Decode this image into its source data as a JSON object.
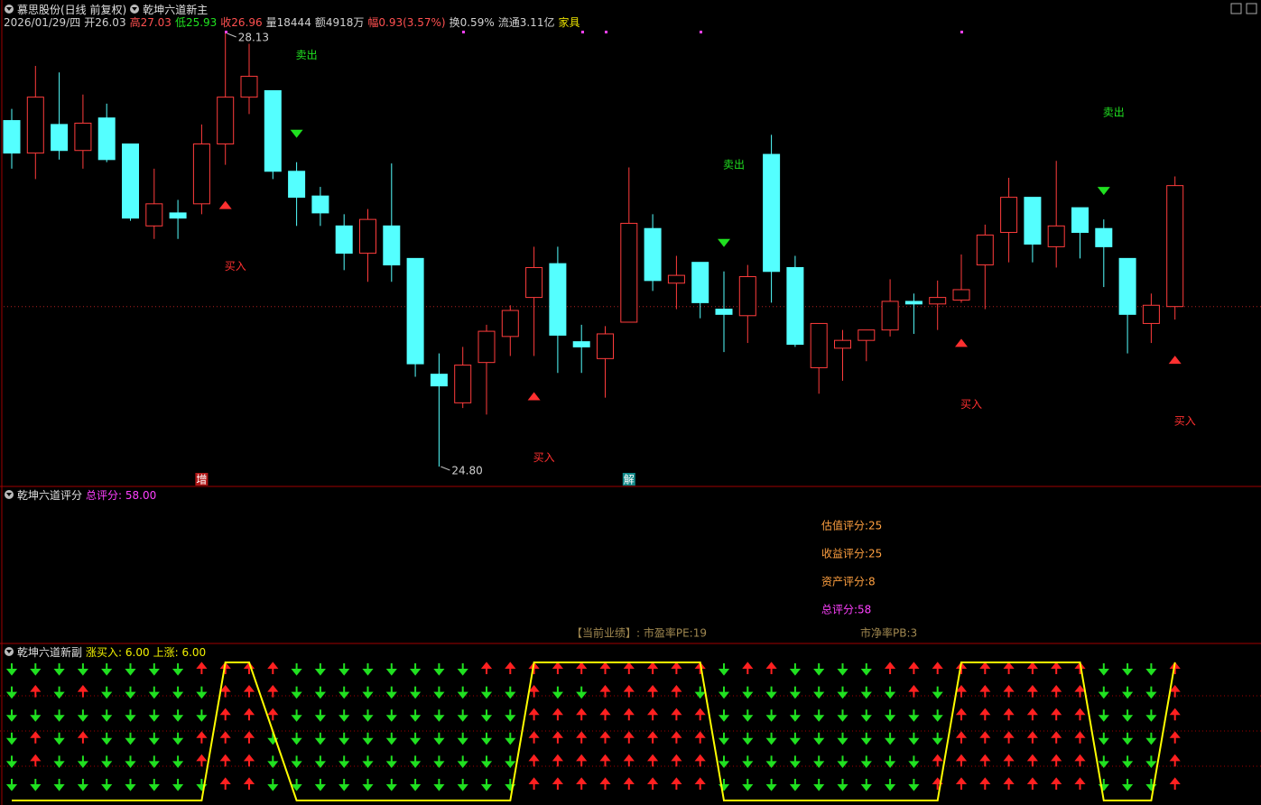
{
  "chart_data": [
    {
      "type": "candlestick",
      "title": "慕思股份(日线 前复权)",
      "indicator": "乾坤六道新主",
      "info": [
        {
          "text": "2026/01/29/四",
          "color": "#d0d0d0"
        },
        {
          "text": "开26.03",
          "color": "#d0d0d0"
        },
        {
          "text": "高27.03",
          "color": "#ff5050"
        },
        {
          "text": "低25.93",
          "color": "#20e020"
        },
        {
          "text": "收26.96",
          "color": "#ff5050"
        },
        {
          "text": "量18444",
          "color": "#d0d0d0"
        },
        {
          "text": "额4918万",
          "color": "#d0d0d0"
        },
        {
          "text": "幅0.93(3.57%)",
          "color": "#ff5050"
        },
        {
          "text": "换0.59%",
          "color": "#d0d0d0"
        },
        {
          "text": "流通3.11亿",
          "color": "#d0d0d0"
        },
        {
          "text": "家具",
          "color": "#e8e000"
        }
      ],
      "open": [
        27.46,
        27.21,
        27.43,
        27.23,
        27.48,
        27.28,
        26.65,
        26.75,
        26.82,
        27.28,
        27.64,
        27.69,
        27.07,
        26.88,
        26.65,
        26.44,
        26.65,
        26.4,
        25.51,
        25.29,
        25.6,
        25.8,
        26.1,
        26.36,
        25.76,
        25.63,
        25.91,
        26.63,
        26.21,
        26.37,
        26.01,
        25.96,
        27.2,
        26.33,
        25.56,
        25.71,
        25.77,
        25.85,
        26.07,
        26.05,
        26.08,
        26.35,
        26.6,
        26.87,
        26.49,
        26.79,
        26.63,
        26.4,
        25.9,
        26.03
      ],
      "high": [
        27.55,
        27.88,
        27.83,
        27.66,
        27.59,
        27.28,
        27.09,
        26.85,
        27.43,
        28.13,
        28.05,
        27.69,
        27.14,
        26.95,
        26.74,
        26.78,
        27.13,
        26.4,
        25.67,
        25.72,
        25.89,
        26.04,
        26.49,
        26.49,
        25.89,
        25.88,
        27.1,
        26.74,
        26.42,
        26.37,
        26.3,
        26.35,
        27.35,
        26.42,
        25.9,
        25.85,
        25.85,
        26.24,
        26.13,
        26.23,
        26.43,
        26.66,
        27.02,
        26.87,
        27.15,
        26.79,
        26.7,
        26.4,
        26.13,
        27.03
      ],
      "low": [
        27.09,
        27.01,
        27.16,
        27.09,
        27.14,
        26.69,
        26.55,
        26.55,
        26.74,
        27.12,
        27.51,
        27.01,
        26.65,
        26.65,
        26.31,
        26.22,
        26.22,
        25.49,
        24.8,
        25.25,
        25.2,
        25.65,
        25.65,
        25.52,
        25.52,
        25.33,
        25.91,
        26.15,
        26.01,
        25.94,
        25.68,
        25.75,
        26.06,
        25.72,
        25.36,
        25.46,
        25.61,
        25.8,
        25.82,
        25.85,
        26.06,
        26.01,
        26.37,
        26.37,
        26.33,
        26.4,
        26.18,
        25.67,
        25.75,
        25.93
      ],
      "close": [
        27.21,
        27.64,
        27.23,
        27.44,
        27.16,
        26.71,
        26.82,
        26.71,
        27.28,
        27.64,
        27.8,
        27.07,
        26.87,
        26.75,
        26.44,
        26.7,
        26.35,
        25.59,
        25.42,
        25.58,
        25.84,
        26.0,
        26.33,
        25.81,
        25.72,
        25.82,
        26.67,
        26.23,
        26.27,
        26.06,
        25.97,
        26.26,
        26.3,
        25.74,
        25.9,
        25.77,
        25.85,
        26.07,
        26.05,
        26.1,
        26.16,
        26.58,
        26.87,
        26.51,
        26.65,
        26.6,
        26.49,
        25.97,
        26.04,
        26.96
      ],
      "up_color": "#ff3c3c",
      "down_color": "#54ffff",
      "ylim": [
        24.7,
        28.3
      ],
      "ref_line": 26.03,
      "extremes": [
        {
          "value": 28.13,
          "label": "28.13"
        },
        {
          "value": 24.8,
          "label": "24.80"
        }
      ],
      "signals": [
        null,
        null,
        null,
        null,
        null,
        null,
        null,
        null,
        null,
        {
          "text": "买入",
          "color": "#ff3030",
          "marker": "up"
        },
        null,
        null,
        {
          "text": "卖出",
          "color": "#20e020",
          "marker": "down"
        },
        null,
        null,
        null,
        null,
        null,
        null,
        null,
        null,
        null,
        {
          "text": "买入",
          "color": "#ff3030",
          "marker": "up"
        },
        null,
        null,
        null,
        null,
        null,
        null,
        null,
        {
          "text": "卖出",
          "color": "#20e020",
          "marker": "down"
        },
        null,
        null,
        null,
        null,
        null,
        null,
        null,
        null,
        null,
        {
          "text": "买入",
          "color": "#ff3030",
          "marker": "up"
        },
        null,
        null,
        null,
        null,
        null,
        {
          "text": "卖出",
          "color": "#20e020",
          "marker": "down"
        },
        null,
        null,
        {
          "text": "买入",
          "color": "#ff3030",
          "marker": "up"
        }
      ],
      "tags": [
        null,
        null,
        null,
        null,
        null,
        null,
        null,
        null,
        {
          "text": "增",
          "color": "#b01818"
        },
        null,
        null,
        null,
        null,
        null,
        null,
        null,
        null,
        null,
        null,
        null,
        null,
        null,
        null,
        null,
        null,
        null,
        {
          "text": "解",
          "color": "#108888"
        },
        null,
        null,
        null,
        null,
        null,
        null,
        null,
        null,
        null,
        null,
        null,
        null,
        null,
        null,
        null,
        null,
        null,
        null,
        null,
        null,
        null,
        null,
        null
      ]
    },
    {
      "type": "text-panel",
      "title": "乾坤六道评分",
      "summary": [
        "总评分: 58.00"
      ],
      "summary_color": "#ff40ff",
      "lines": [
        {
          "text": "估值评分:25",
          "color": "#ffa040"
        },
        {
          "text": "收益评分:25",
          "color": "#ffa040"
        },
        {
          "text": "资产评分:8",
          "color": "#ffa040"
        },
        {
          "text": "总评分:58",
          "color": "#ff40ff"
        }
      ],
      "footer": [
        "【当前业绩】: 市盈率PE:19",
        "市净率PB:3"
      ],
      "footer_color": "#a08850"
    },
    {
      "type": "arrow-grid",
      "title": "乾坤六道新副",
      "summary": [
        "涨买入: 6.00",
        "上涨: 6.00"
      ],
      "summary_color": "#f0f000",
      "up_color": "#ff2020",
      "down_color": "#20e020",
      "rows": [
        [
          0,
          0,
          0,
          0,
          0,
          0,
          0,
          0,
          1,
          1,
          1,
          1,
          0,
          0,
          0,
          0,
          0,
          0,
          0,
          0,
          1,
          1,
          1,
          1,
          1,
          1,
          1,
          1,
          1,
          1,
          0,
          1,
          1,
          0,
          0,
          0,
          0,
          1,
          1,
          1,
          1,
          1,
          1,
          1,
          1,
          1,
          0,
          0,
          0,
          1
        ],
        [
          0,
          1,
          0,
          1,
          0,
          0,
          0,
          0,
          0,
          1,
          1,
          1,
          0,
          0,
          0,
          0,
          0,
          0,
          0,
          0,
          0,
          0,
          1,
          0,
          0,
          1,
          1,
          1,
          1,
          0,
          0,
          0,
          0,
          0,
          0,
          0,
          0,
          0,
          1,
          0,
          1,
          1,
          1,
          1,
          1,
          1,
          0,
          0,
          0,
          1
        ],
        [
          0,
          0,
          0,
          0,
          0,
          0,
          0,
          0,
          0,
          1,
          1,
          1,
          0,
          0,
          0,
          0,
          0,
          0,
          0,
          0,
          0,
          0,
          1,
          1,
          1,
          1,
          1,
          1,
          1,
          1,
          0,
          0,
          0,
          0,
          0,
          0,
          0,
          0,
          0,
          0,
          1,
          1,
          1,
          1,
          1,
          1,
          0,
          0,
          0,
          1
        ],
        [
          0,
          1,
          0,
          1,
          0,
          0,
          0,
          0,
          1,
          1,
          1,
          0,
          0,
          0,
          0,
          0,
          0,
          0,
          0,
          0,
          0,
          0,
          1,
          1,
          1,
          1,
          1,
          1,
          1,
          1,
          0,
          0,
          0,
          0,
          0,
          0,
          0,
          0,
          0,
          0,
          1,
          1,
          1,
          1,
          1,
          1,
          0,
          0,
          0,
          1
        ],
        [
          0,
          1,
          0,
          0,
          0,
          0,
          0,
          0,
          1,
          1,
          1,
          0,
          0,
          0,
          0,
          0,
          0,
          0,
          0,
          0,
          0,
          0,
          1,
          1,
          1,
          1,
          1,
          1,
          1,
          1,
          0,
          0,
          0,
          0,
          0,
          0,
          0,
          0,
          0,
          1,
          1,
          1,
          1,
          1,
          1,
          1,
          0,
          0,
          0,
          1
        ],
        [
          0,
          0,
          0,
          0,
          0,
          0,
          0,
          0,
          0,
          1,
          1,
          0,
          0,
          0,
          0,
          0,
          0,
          0,
          0,
          0,
          0,
          0,
          1,
          1,
          1,
          1,
          1,
          1,
          1,
          1,
          0,
          0,
          0,
          0,
          0,
          0,
          0,
          0,
          0,
          1,
          1,
          1,
          1,
          1,
          1,
          1,
          0,
          0,
          0,
          1
        ]
      ],
      "line": {
        "values": [
          0,
          0,
          0,
          0,
          0,
          0,
          0,
          0,
          0,
          6,
          6,
          3,
          0,
          0,
          0,
          0,
          0,
          0,
          0,
          0,
          0,
          0,
          6,
          6,
          6,
          6,
          6,
          6,
          6,
          6,
          0,
          0,
          0,
          0,
          0,
          0,
          0,
          0,
          0,
          0,
          6,
          6,
          6,
          6,
          6,
          6,
          0,
          0,
          0,
          6
        ],
        "color": "#ffff00"
      },
      "ylim": [
        0,
        6
      ]
    }
  ]
}
